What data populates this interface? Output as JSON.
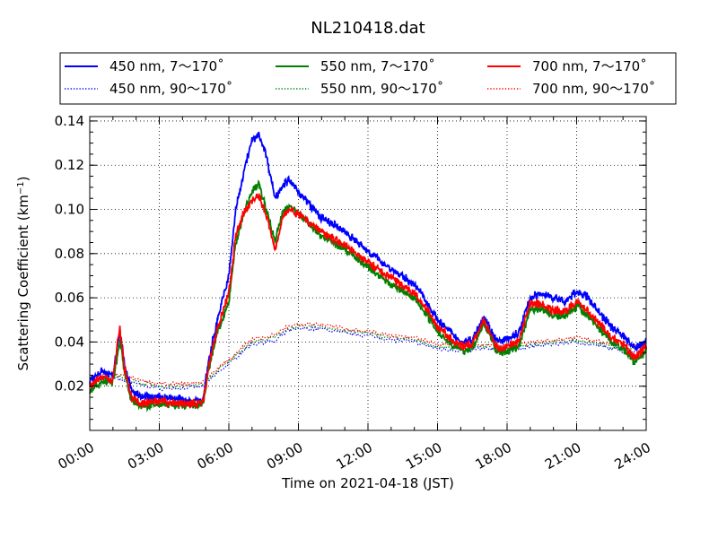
{
  "chart_data": {
    "type": "line",
    "title": "NL210418.dat",
    "xlabel": "Time on 2021-04-18 (JST)",
    "ylabel_main": "Scattering Coefficient (km",
    "ylabel_sup": "−1",
    "ylabel_close": ")",
    "x_ticks": [
      "00:00",
      "03:00",
      "06:00",
      "09:00",
      "12:00",
      "15:00",
      "18:00",
      "21:00",
      "24:00"
    ],
    "y_ticks": [
      "0.02",
      "0.04",
      "0.06",
      "0.08",
      "0.10",
      "0.12",
      "0.14"
    ],
    "xlim_hours": [
      0,
      24
    ],
    "ylim": [
      0.0,
      0.142
    ],
    "grid": true,
    "legend_position": "top",
    "series": [
      {
        "name": "450 nm, 7～170˚",
        "color": "#0000ff",
        "style": "solid",
        "x": [
          0,
          0.5,
          1,
          1.3,
          1.5,
          1.8,
          2.2,
          3,
          4,
          4.5,
          4.9,
          5.1,
          5.5,
          6,
          6.3,
          6.7,
          7,
          7.3,
          7.6,
          8,
          8.3,
          8.6,
          9,
          9.5,
          10,
          11,
          12,
          13,
          14,
          14.5,
          15,
          15.5,
          16,
          16.5,
          17,
          17.3,
          17.6,
          18,
          18.5,
          19,
          19.5,
          20,
          20.5,
          21,
          21.5,
          22,
          22.5,
          23,
          23.5,
          24
        ],
        "values": [
          0.022,
          0.027,
          0.025,
          0.046,
          0.03,
          0.018,
          0.015,
          0.015,
          0.014,
          0.013,
          0.014,
          0.03,
          0.05,
          0.07,
          0.1,
          0.12,
          0.131,
          0.134,
          0.125,
          0.105,
          0.111,
          0.113,
          0.108,
          0.102,
          0.096,
          0.09,
          0.081,
          0.073,
          0.066,
          0.059,
          0.05,
          0.045,
          0.04,
          0.041,
          0.052,
          0.045,
          0.04,
          0.041,
          0.044,
          0.06,
          0.062,
          0.06,
          0.058,
          0.063,
          0.06,
          0.053,
          0.047,
          0.043,
          0.037,
          0.041
        ]
      },
      {
        "name": "550 nm, 7～170˚",
        "color": "#008000",
        "style": "solid",
        "x": [
          0,
          0.5,
          1,
          1.3,
          1.5,
          1.8,
          2.2,
          3,
          4,
          4.5,
          4.9,
          5.1,
          5.5,
          6,
          6.3,
          6.7,
          7,
          7.3,
          7.6,
          8,
          8.3,
          8.6,
          9,
          9.5,
          10,
          11,
          12,
          13,
          14,
          14.5,
          15,
          15.5,
          16,
          16.5,
          17,
          17.3,
          17.6,
          18,
          18.5,
          19,
          19.5,
          20,
          20.5,
          21,
          21.5,
          22,
          22.5,
          23,
          23.5,
          24
        ],
        "values": [
          0.018,
          0.022,
          0.022,
          0.04,
          0.027,
          0.014,
          0.011,
          0.012,
          0.011,
          0.011,
          0.012,
          0.026,
          0.044,
          0.058,
          0.085,
          0.1,
          0.108,
          0.112,
          0.1,
          0.086,
          0.098,
          0.102,
          0.098,
          0.093,
          0.088,
          0.082,
          0.074,
          0.066,
          0.06,
          0.053,
          0.045,
          0.04,
          0.036,
          0.037,
          0.048,
          0.042,
          0.035,
          0.036,
          0.038,
          0.055,
          0.055,
          0.052,
          0.052,
          0.056,
          0.052,
          0.046,
          0.04,
          0.037,
          0.031,
          0.036
        ]
      },
      {
        "name": "700 nm, 7～170˚",
        "color": "#ff0000",
        "style": "solid",
        "x": [
          0,
          0.5,
          1,
          1.3,
          1.5,
          1.8,
          2.2,
          3,
          4,
          4.5,
          4.9,
          5.1,
          5.5,
          6,
          6.3,
          6.7,
          7,
          7.3,
          7.6,
          8,
          8.3,
          8.6,
          9,
          9.5,
          10,
          11,
          12,
          13,
          14,
          14.5,
          15,
          15.5,
          16,
          16.5,
          17,
          17.3,
          17.6,
          18,
          18.5,
          19,
          19.5,
          20,
          20.5,
          21,
          21.5,
          22,
          22.5,
          23,
          23.5,
          24
        ],
        "values": [
          0.02,
          0.024,
          0.023,
          0.047,
          0.028,
          0.015,
          0.012,
          0.013,
          0.012,
          0.012,
          0.013,
          0.028,
          0.046,
          0.062,
          0.088,
          0.1,
          0.104,
          0.106,
          0.098,
          0.082,
          0.096,
          0.1,
          0.098,
          0.094,
          0.09,
          0.084,
          0.076,
          0.069,
          0.062,
          0.055,
          0.047,
          0.042,
          0.038,
          0.039,
          0.05,
          0.043,
          0.037,
          0.038,
          0.04,
          0.058,
          0.057,
          0.054,
          0.054,
          0.058,
          0.054,
          0.048,
          0.042,
          0.039,
          0.033,
          0.038
        ]
      },
      {
        "name": "450 nm, 90～170˚",
        "color": "#0000ff",
        "style": "dotted",
        "x": [
          0,
          1,
          2,
          3,
          4,
          4.9,
          5.5,
          6,
          6.5,
          7,
          7.5,
          8,
          8.5,
          9,
          10,
          11,
          12,
          13,
          14,
          15,
          16,
          17,
          18,
          19,
          20,
          21,
          22,
          23,
          24
        ],
        "values": [
          0.022,
          0.024,
          0.021,
          0.019,
          0.019,
          0.02,
          0.026,
          0.03,
          0.035,
          0.039,
          0.04,
          0.04,
          0.045,
          0.046,
          0.046,
          0.044,
          0.043,
          0.041,
          0.04,
          0.037,
          0.036,
          0.037,
          0.036,
          0.038,
          0.039,
          0.04,
          0.038,
          0.036,
          0.036
        ]
      },
      {
        "name": "550 nm, 90～170˚",
        "color": "#008000",
        "style": "dotted",
        "x": [
          0,
          1,
          2,
          3,
          4,
          4.9,
          5.5,
          6,
          6.5,
          7,
          7.5,
          8,
          8.5,
          9,
          10,
          11,
          12,
          13,
          14,
          15,
          16,
          17,
          18,
          19,
          20,
          21,
          22,
          23,
          24
        ],
        "values": [
          0.023,
          0.025,
          0.022,
          0.02,
          0.02,
          0.021,
          0.027,
          0.031,
          0.036,
          0.04,
          0.041,
          0.042,
          0.046,
          0.047,
          0.047,
          0.045,
          0.044,
          0.042,
          0.041,
          0.038,
          0.037,
          0.038,
          0.037,
          0.039,
          0.04,
          0.041,
          0.039,
          0.037,
          0.037
        ]
      },
      {
        "name": "700 nm, 90～170˚",
        "color": "#ff0000",
        "style": "dotted",
        "x": [
          0,
          1,
          2,
          3,
          4,
          4.9,
          5.5,
          6,
          6.5,
          7,
          7.5,
          8,
          8.5,
          9,
          10,
          11,
          12,
          13,
          14,
          15,
          16,
          17,
          18,
          19,
          20,
          21,
          22,
          23,
          24
        ],
        "values": [
          0.024,
          0.026,
          0.023,
          0.021,
          0.021,
          0.022,
          0.028,
          0.032,
          0.037,
          0.041,
          0.042,
          0.043,
          0.047,
          0.048,
          0.048,
          0.046,
          0.045,
          0.043,
          0.042,
          0.039,
          0.038,
          0.039,
          0.038,
          0.04,
          0.041,
          0.042,
          0.04,
          0.038,
          0.038
        ]
      }
    ]
  }
}
